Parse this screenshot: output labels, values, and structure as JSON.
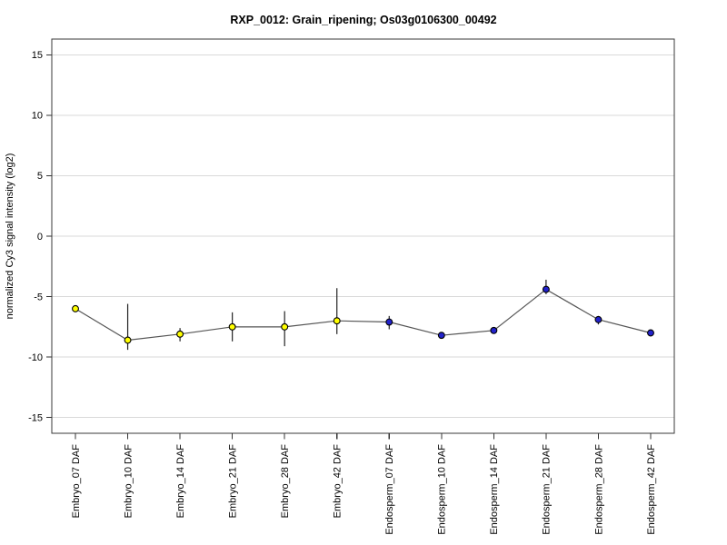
{
  "page": {
    "background": "#ffffff"
  },
  "chart_data": {
    "type": "line",
    "title": "RXP_0012: Grain_ripening; Os03g0106300_00492",
    "xlabel": "",
    "ylabel": "normalized Cy3 signal intensity (log2)",
    "categories": [
      "Embryo_07 DAF",
      "Embryo_10 DAF",
      "Embryo_14 DAF",
      "Embryo_21 DAF",
      "Embryo_28 DAF",
      "Embryo_42 DAF",
      "Endosperm_07 DAF",
      "Endosperm_10 DAF",
      "Endosperm_14 DAF",
      "Endosperm_21 DAF",
      "Endosperm_28 DAF",
      "Endosperm_42 DAF"
    ],
    "series": [
      {
        "name": "normalized Cy3 signal intensity (log2)",
        "values": [
          -6.0,
          -8.6,
          -8.1,
          -7.5,
          -7.5,
          -7.0,
          -7.1,
          -8.2,
          -7.8,
          -4.4,
          -6.9,
          -8.0
        ],
        "error_high": [
          -6.0,
          -5.6,
          -7.6,
          -6.3,
          -6.2,
          -4.3,
          -6.6,
          -8.0,
          -7.6,
          -3.6,
          -6.6,
          -8.0
        ],
        "error_low": [
          -6.0,
          -9.4,
          -8.7,
          -8.7,
          -9.1,
          -8.1,
          -7.7,
          -8.4,
          -8.0,
          -4.8,
          -7.3,
          -8.0
        ],
        "marker_groups": [
          "Embryo",
          "Embryo",
          "Embryo",
          "Embryo",
          "Embryo",
          "Embryo",
          "Endosperm",
          "Endosperm",
          "Endosperm",
          "Endosperm",
          "Endosperm",
          "Endosperm"
        ]
      }
    ],
    "group_colors": {
      "Embryo": "#ffff00",
      "Endosperm": "#2222cc"
    },
    "yticks": [
      15,
      10,
      5,
      0,
      -5,
      -10,
      -15
    ],
    "ylim": [
      -16.3,
      16.3
    ],
    "grid": true,
    "legend": "none",
    "colors": {
      "line": "#555555",
      "error_bar": "#222222",
      "marker_outline": "#000000",
      "grid": "#d9d9d9",
      "frame": "#3a3a3a",
      "tick": "#333333",
      "text": "#000000",
      "background": "#ffffff"
    }
  }
}
